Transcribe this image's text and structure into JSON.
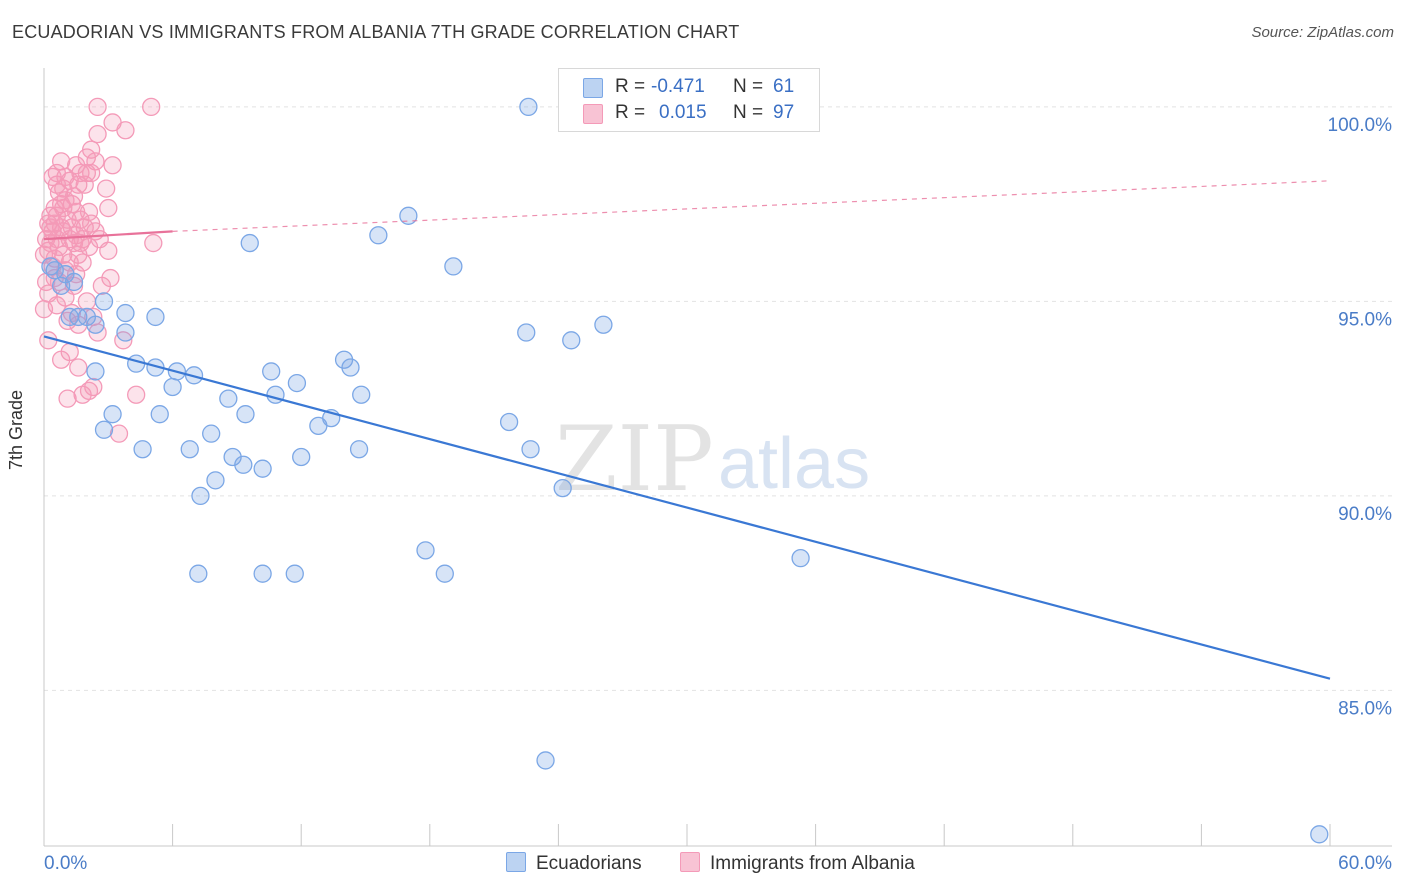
{
  "title": "ECUADORIAN VS IMMIGRANTS FROM ALBANIA 7TH GRADE CORRELATION CHART",
  "source": "Source: ZipAtlas.com",
  "watermark": {
    "zip": "ZIP",
    "atlas": "atlas"
  },
  "legend_top": {
    "r_label": "R =",
    "n_label": "N =",
    "rows": [
      {
        "r": "-0.471",
        "n": "61"
      },
      {
        "r": "0.015",
        "n": "97"
      }
    ]
  },
  "chart_data": {
    "type": "scatter",
    "ylabel": "7th Grade",
    "xlim": [
      0,
      60
    ],
    "ylim": [
      81,
      101
    ],
    "x_tick_labels": {
      "left": "0.0%",
      "right": "60.0%"
    },
    "y_ticks": [
      {
        "value": 100,
        "label": "100.0%"
      },
      {
        "value": 95,
        "label": "95.0%"
      },
      {
        "value": 90,
        "label": "90.0%"
      },
      {
        "value": 85,
        "label": "85.0%"
      }
    ],
    "grid": true,
    "colors": {
      "ecuadorians": "#7ba7e6",
      "albania": "#f49ab8",
      "blue_line": "#3a78d4",
      "pink_line": "#e8729a",
      "axis_text": "#4a7cc7"
    },
    "series": [
      {
        "name": "Ecuadorians",
        "trend": {
          "x": [
            0,
            60
          ],
          "y": [
            94.1,
            85.3
          ]
        },
        "points": [
          [
            0.5,
            95.8
          ],
          [
            0.8,
            95.4
          ],
          [
            1.0,
            95.7
          ],
          [
            1.4,
            95.5
          ],
          [
            1.6,
            94.6
          ],
          [
            2.0,
            94.6
          ],
          [
            2.4,
            94.4
          ],
          [
            2.8,
            95.0
          ],
          [
            3.8,
            94.7
          ],
          [
            5.2,
            94.6
          ],
          [
            1.2,
            94.6
          ],
          [
            3.8,
            94.2
          ],
          [
            4.3,
            93.4
          ],
          [
            5.2,
            93.3
          ],
          [
            6.2,
            93.2
          ],
          [
            7.0,
            93.1
          ],
          [
            2.4,
            93.2
          ],
          [
            6.0,
            92.8
          ],
          [
            8.6,
            92.5
          ],
          [
            10.6,
            93.2
          ],
          [
            11.8,
            92.9
          ],
          [
            10.8,
            92.6
          ],
          [
            12.8,
            91.8
          ],
          [
            13.4,
            92.0
          ],
          [
            14.0,
            93.5
          ],
          [
            14.3,
            93.3
          ],
          [
            14.8,
            92.6
          ],
          [
            2.8,
            91.7
          ],
          [
            3.2,
            92.1
          ],
          [
            5.4,
            92.1
          ],
          [
            9.4,
            92.1
          ],
          [
            7.8,
            91.6
          ],
          [
            4.6,
            91.2
          ],
          [
            6.8,
            91.2
          ],
          [
            8.8,
            91.0
          ],
          [
            12.0,
            91.0
          ],
          [
            14.7,
            91.2
          ],
          [
            9.3,
            90.8
          ],
          [
            10.2,
            90.7
          ],
          [
            8.0,
            90.4
          ],
          [
            7.3,
            90.0
          ],
          [
            7.2,
            88.0
          ],
          [
            10.2,
            88.0
          ],
          [
            11.7,
            88.0
          ],
          [
            17.8,
            88.6
          ],
          [
            18.7,
            88.0
          ],
          [
            17.0,
            97.2
          ],
          [
            15.6,
            96.7
          ],
          [
            9.6,
            96.5
          ],
          [
            19.1,
            95.9
          ],
          [
            22.5,
            94.2
          ],
          [
            24.6,
            94.0
          ],
          [
            26.1,
            94.4
          ],
          [
            21.7,
            91.9
          ],
          [
            22.7,
            91.2
          ],
          [
            24.2,
            90.2
          ],
          [
            22.6,
            100.0
          ],
          [
            35.3,
            88.4
          ],
          [
            23.4,
            83.2
          ],
          [
            59.5,
            81.3
          ],
          [
            0.3,
            95.9
          ]
        ]
      },
      {
        "name": "Immigrants from Albania",
        "trend_solid": {
          "x": [
            0,
            6.0
          ],
          "y": [
            96.6,
            96.8
          ]
        },
        "trend_dashed": {
          "x": [
            6.0,
            60
          ],
          "y": [
            96.8,
            98.1
          ]
        },
        "points": [
          [
            2.5,
            100.0
          ],
          [
            5.0,
            100.0
          ],
          [
            3.2,
            99.6
          ],
          [
            2.5,
            99.3
          ],
          [
            3.8,
            99.4
          ],
          [
            2.2,
            98.9
          ],
          [
            2.0,
            98.7
          ],
          [
            0.8,
            98.6
          ],
          [
            1.5,
            98.5
          ],
          [
            2.4,
            98.6
          ],
          [
            3.2,
            98.5
          ],
          [
            0.6,
            98.3
          ],
          [
            1.0,
            98.2
          ],
          [
            1.7,
            98.3
          ],
          [
            2.0,
            98.3
          ],
          [
            2.2,
            98.3
          ],
          [
            0.4,
            98.2
          ],
          [
            1.2,
            98.1
          ],
          [
            1.6,
            98.0
          ],
          [
            1.9,
            98.0
          ],
          [
            0.9,
            97.9
          ],
          [
            2.9,
            97.9
          ],
          [
            0.7,
            97.8
          ],
          [
            1.0,
            97.6
          ],
          [
            1.3,
            97.5
          ],
          [
            0.5,
            97.4
          ],
          [
            0.9,
            97.4
          ],
          [
            1.5,
            97.3
          ],
          [
            2.1,
            97.3
          ],
          [
            0.3,
            97.2
          ],
          [
            0.6,
            97.2
          ],
          [
            1.1,
            97.1
          ],
          [
            1.7,
            97.1
          ],
          [
            0.2,
            97.0
          ],
          [
            0.5,
            97.0
          ],
          [
            0.8,
            96.9
          ],
          [
            1.3,
            96.9
          ],
          [
            1.9,
            96.9
          ],
          [
            0.4,
            96.8
          ],
          [
            0.9,
            96.8
          ],
          [
            1.5,
            96.7
          ],
          [
            0.1,
            96.6
          ],
          [
            0.6,
            96.6
          ],
          [
            1.2,
            96.6
          ],
          [
            1.8,
            96.6
          ],
          [
            2.6,
            96.6
          ],
          [
            0.3,
            96.5
          ],
          [
            0.7,
            96.4
          ],
          [
            1.4,
            96.5
          ],
          [
            2.1,
            96.4
          ],
          [
            3.0,
            96.3
          ],
          [
            5.1,
            96.5
          ],
          [
            0.2,
            96.3
          ],
          [
            0.9,
            96.2
          ],
          [
            1.6,
            96.2
          ],
          [
            0.5,
            96.1
          ],
          [
            1.2,
            96.0
          ],
          [
            1.8,
            96.0
          ],
          [
            0.4,
            95.9
          ],
          [
            1.0,
            95.8
          ],
          [
            1.5,
            95.7
          ],
          [
            3.1,
            95.6
          ],
          [
            0.1,
            95.5
          ],
          [
            0.7,
            95.5
          ],
          [
            1.4,
            95.4
          ],
          [
            2.7,
            95.4
          ],
          [
            0.2,
            95.2
          ],
          [
            1.0,
            95.1
          ],
          [
            2.0,
            95.0
          ],
          [
            0.6,
            94.9
          ],
          [
            0.0,
            94.8
          ],
          [
            1.3,
            94.7
          ],
          [
            2.3,
            94.6
          ],
          [
            1.1,
            94.5
          ],
          [
            1.6,
            94.4
          ],
          [
            2.5,
            94.2
          ],
          [
            3.7,
            94.0
          ],
          [
            0.2,
            94.0
          ],
          [
            1.2,
            93.7
          ],
          [
            0.8,
            93.5
          ],
          [
            1.6,
            93.3
          ],
          [
            2.3,
            92.8
          ],
          [
            2.1,
            92.7
          ],
          [
            1.8,
            92.6
          ],
          [
            1.1,
            92.5
          ],
          [
            4.3,
            92.6
          ],
          [
            3.5,
            91.6
          ],
          [
            0.6,
            98.0
          ],
          [
            1.4,
            97.7
          ],
          [
            0.8,
            97.5
          ],
          [
            0.3,
            96.9
          ],
          [
            2.2,
            97.0
          ],
          [
            1.7,
            96.5
          ],
          [
            0.0,
            96.2
          ],
          [
            2.4,
            96.8
          ],
          [
            3.0,
            97.4
          ],
          [
            0.5,
            95.6
          ]
        ]
      }
    ]
  },
  "bottom_legend": [
    {
      "label": "Ecuadorians"
    },
    {
      "label": "Immigrants from Albania"
    }
  ]
}
